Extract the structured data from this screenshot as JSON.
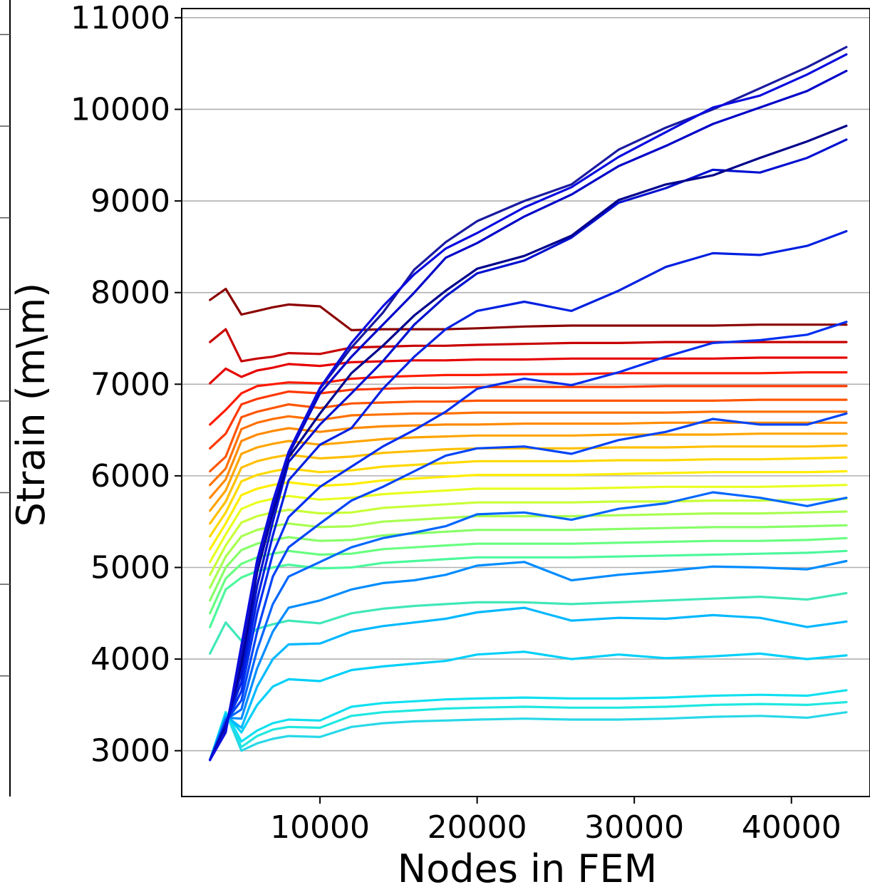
{
  "chart_data": {
    "type": "line",
    "xlabel": "Nodes in FEM",
    "ylabel": "Strain (m\\m)",
    "xlim": [
      1200,
      45000
    ],
    "ylim": [
      2500,
      11100
    ],
    "xticks": [
      10000,
      20000,
      30000,
      40000
    ],
    "yticks": [
      3000,
      4000,
      5000,
      6000,
      7000,
      8000,
      9000,
      10000,
      11000
    ],
    "x": [
      3000,
      4000,
      5000,
      6000,
      7000,
      8000,
      10000,
      12000,
      14000,
      16000,
      18000,
      20000,
      23000,
      26000,
      29000,
      32000,
      35000,
      38000,
      41000,
      43500
    ],
    "grid_y": true,
    "series": [
      {
        "color": "#8b0000",
        "values": [
          7920,
          8040,
          7760,
          7800,
          7840,
          7870,
          7850,
          7590,
          7600,
          7600,
          7600,
          7610,
          7630,
          7640,
          7640,
          7640,
          7640,
          7650,
          7650,
          7650
        ]
      },
      {
        "color": "#c80000",
        "values": [
          7460,
          7600,
          7250,
          7280,
          7300,
          7340,
          7330,
          7400,
          7410,
          7420,
          7420,
          7430,
          7440,
          7450,
          7450,
          7460,
          7460,
          7460,
          7460,
          7460
        ]
      },
      {
        "color": "#e60000",
        "values": [
          7010,
          7170,
          7080,
          7150,
          7180,
          7220,
          7200,
          7240,
          7250,
          7260,
          7260,
          7270,
          7270,
          7280,
          7280,
          7280,
          7280,
          7290,
          7290,
          7290
        ]
      },
      {
        "color": "#ff1a00",
        "values": [
          6560,
          6720,
          6900,
          6980,
          7000,
          7020,
          7010,
          7060,
          7080,
          7090,
          7100,
          7100,
          7110,
          7110,
          7120,
          7120,
          7120,
          7120,
          7130,
          7130
        ]
      },
      {
        "color": "#ff3800",
        "values": [
          6300,
          6460,
          6780,
          6840,
          6880,
          6920,
          6900,
          6940,
          6950,
          6960,
          6960,
          6970,
          6970,
          6970,
          6970,
          6980,
          6980,
          6980,
          6980,
          6980
        ]
      },
      {
        "color": "#ff5500",
        "values": [
          6050,
          6210,
          6640,
          6700,
          6740,
          6780,
          6740,
          6790,
          6800,
          6810,
          6810,
          6820,
          6820,
          6820,
          6820,
          6820,
          6820,
          6830,
          6830,
          6830
        ]
      },
      {
        "color": "#ff7000",
        "values": [
          5900,
          6080,
          6510,
          6580,
          6620,
          6650,
          6610,
          6660,
          6670,
          6680,
          6680,
          6690,
          6690,
          6690,
          6690,
          6690,
          6700,
          6700,
          6700,
          6700
        ]
      },
      {
        "color": "#ff8a00",
        "values": [
          5760,
          5960,
          6380,
          6450,
          6490,
          6520,
          6480,
          6520,
          6540,
          6550,
          6560,
          6560,
          6570,
          6570,
          6570,
          6580,
          6580,
          6580,
          6580,
          6580
        ]
      },
      {
        "color": "#ffa500",
        "values": [
          5620,
          5840,
          6240,
          6310,
          6350,
          6380,
          6340,
          6370,
          6400,
          6420,
          6430,
          6440,
          6440,
          6440,
          6450,
          6450,
          6450,
          6460,
          6460,
          6460
        ]
      },
      {
        "color": "#ffbf00",
        "values": [
          5480,
          5720,
          6090,
          6160,
          6200,
          6230,
          6190,
          6210,
          6250,
          6270,
          6290,
          6300,
          6300,
          6300,
          6310,
          6310,
          6320,
          6320,
          6320,
          6330
        ]
      },
      {
        "color": "#ffd900",
        "values": [
          5340,
          5600,
          5940,
          6010,
          6050,
          6080,
          6040,
          6060,
          6100,
          6120,
          6140,
          6160,
          6160,
          6160,
          6170,
          6170,
          6180,
          6180,
          6190,
          6200
        ]
      },
      {
        "color": "#ffee00",
        "values": [
          5200,
          5480,
          5790,
          5860,
          5900,
          5930,
          5890,
          5910,
          5950,
          5970,
          5990,
          6010,
          6010,
          6010,
          6020,
          6030,
          6040,
          6040,
          6040,
          6050
        ]
      },
      {
        "color": "#e8ff20",
        "values": [
          5060,
          5360,
          5640,
          5710,
          5750,
          5780,
          5740,
          5760,
          5800,
          5820,
          5840,
          5860,
          5860,
          5860,
          5870,
          5880,
          5880,
          5880,
          5890,
          5900
        ]
      },
      {
        "color": "#c8ff38",
        "values": [
          4920,
          5240,
          5490,
          5560,
          5600,
          5630,
          5590,
          5600,
          5650,
          5670,
          5690,
          5710,
          5710,
          5710,
          5720,
          5720,
          5730,
          5730,
          5740,
          5750
        ]
      },
      {
        "color": "#a8ff50",
        "values": [
          4780,
          5120,
          5340,
          5410,
          5450,
          5480,
          5440,
          5450,
          5500,
          5520,
          5540,
          5560,
          5560,
          5560,
          5570,
          5580,
          5590,
          5590,
          5600,
          5610
        ]
      },
      {
        "color": "#88ff68",
        "values": [
          4640,
          5000,
          5190,
          5260,
          5300,
          5330,
          5290,
          5300,
          5350,
          5370,
          5390,
          5410,
          5410,
          5410,
          5420,
          5430,
          5440,
          5440,
          5450,
          5460
        ]
      },
      {
        "color": "#68ff80",
        "values": [
          4500,
          4880,
          5040,
          5110,
          5150,
          5180,
          5140,
          5150,
          5200,
          5220,
          5240,
          5260,
          5260,
          5260,
          5270,
          5280,
          5290,
          5290,
          5300,
          5320
        ]
      },
      {
        "color": "#4cf89c",
        "values": [
          4350,
          4760,
          4890,
          4960,
          5000,
          5030,
          4990,
          5000,
          5050,
          5070,
          5090,
          5110,
          5110,
          5110,
          5120,
          5130,
          5140,
          5150,
          5160,
          5180
        ]
      },
      {
        "color": "#40e8b8",
        "values": [
          4060,
          4400,
          4200,
          4330,
          4380,
          4420,
          4390,
          4500,
          4550,
          4580,
          4600,
          4620,
          4620,
          4600,
          4620,
          4640,
          4660,
          4680,
          4650,
          4720
        ]
      },
      {
        "color": "#20e8e0",
        "values": [
          2900,
          3420,
          3040,
          3160,
          3230,
          3260,
          3250,
          3380,
          3420,
          3440,
          3460,
          3470,
          3480,
          3470,
          3470,
          3480,
          3500,
          3510,
          3500,
          3530
        ]
      },
      {
        "color": "#28d8e8",
        "values": [
          2900,
          3420,
          3000,
          3080,
          3130,
          3160,
          3150,
          3260,
          3300,
          3320,
          3330,
          3340,
          3350,
          3340,
          3340,
          3350,
          3370,
          3380,
          3360,
          3420
        ]
      },
      {
        "color": "#10e0f0",
        "values": [
          2900,
          3420,
          3100,
          3220,
          3300,
          3340,
          3330,
          3480,
          3520,
          3540,
          3560,
          3570,
          3580,
          3570,
          3570,
          3580,
          3600,
          3610,
          3600,
          3660
        ]
      },
      {
        "color": "#00d0f8",
        "values": [
          2900,
          3400,
          3200,
          3500,
          3700,
          3780,
          3760,
          3880,
          3920,
          3950,
          3980,
          4050,
          4080,
          4000,
          4050,
          4010,
          4030,
          4060,
          4000,
          4040
        ]
      },
      {
        "color": "#00b8ff",
        "values": [
          2900,
          3380,
          3250,
          3700,
          4000,
          4160,
          4170,
          4300,
          4360,
          4400,
          4440,
          4510,
          4560,
          4420,
          4450,
          4440,
          4480,
          4450,
          4350,
          4410
        ]
      },
      {
        "color": "#008cff",
        "values": [
          2900,
          3360,
          3350,
          3900,
          4300,
          4560,
          4640,
          4760,
          4830,
          4860,
          4920,
          5020,
          5060,
          4860,
          4920,
          4960,
          5010,
          5000,
          4980,
          5070
        ]
      },
      {
        "color": "#0066ff",
        "values": [
          2900,
          3340,
          3450,
          4100,
          4600,
          4900,
          5060,
          5220,
          5320,
          5380,
          5450,
          5580,
          5600,
          5520,
          5640,
          5700,
          5820,
          5760,
          5670,
          5760
        ]
      },
      {
        "color": "#0044f8",
        "values": [
          2900,
          3320,
          3550,
          4300,
          4900,
          5220,
          5480,
          5730,
          5880,
          6050,
          6220,
          6300,
          6320,
          6240,
          6390,
          6480,
          6620,
          6560,
          6560,
          6680
        ]
      },
      {
        "color": "#002ef0",
        "values": [
          2900,
          3300,
          3650,
          4500,
          5150,
          5550,
          5880,
          6100,
          6320,
          6500,
          6700,
          6950,
          7060,
          6990,
          7130,
          7300,
          7450,
          7480,
          7540,
          7680
        ]
      },
      {
        "color": "#0020e0",
        "values": [
          2900,
          3290,
          3750,
          4650,
          5350,
          5950,
          6340,
          6520,
          6950,
          7300,
          7600,
          7800,
          7900,
          7800,
          8020,
          8280,
          8430,
          8410,
          8510,
          8670
        ]
      },
      {
        "color": "#0010d0",
        "values": [
          2900,
          3280,
          3850,
          4800,
          5500,
          6150,
          6560,
          6900,
          7250,
          7650,
          7960,
          8210,
          8350,
          8600,
          8980,
          9140,
          9340,
          9310,
          9470,
          9670
        ]
      },
      {
        "color": "#00008c",
        "values": [
          2900,
          3260,
          3950,
          4950,
          5600,
          6200,
          6680,
          7120,
          7420,
          7750,
          8020,
          8260,
          8400,
          8620,
          9010,
          9180,
          9280,
          9470,
          9650,
          9820
        ]
      },
      {
        "color": "#0000c8",
        "values": [
          2900,
          3240,
          4050,
          5000,
          5650,
          6230,
          6900,
          7300,
          7650,
          8000,
          8380,
          8540,
          8830,
          9070,
          9380,
          9600,
          9840,
          10020,
          10200,
          10420
        ]
      },
      {
        "color": "#1a1aa0",
        "values": [
          2900,
          3220,
          4100,
          5050,
          5700,
          6250,
          6950,
          7400,
          7780,
          8250,
          8550,
          8780,
          9000,
          9180,
          9560,
          9800,
          10000,
          10230,
          10460,
          10680
        ]
      },
      {
        "color": "#0a0ae0",
        "values": [
          2900,
          3200,
          4150,
          5080,
          5720,
          6260,
          6960,
          7450,
          7850,
          8200,
          8480,
          8650,
          8930,
          9150,
          9480,
          9750,
          10020,
          10150,
          10380,
          10600
        ]
      }
    ]
  }
}
